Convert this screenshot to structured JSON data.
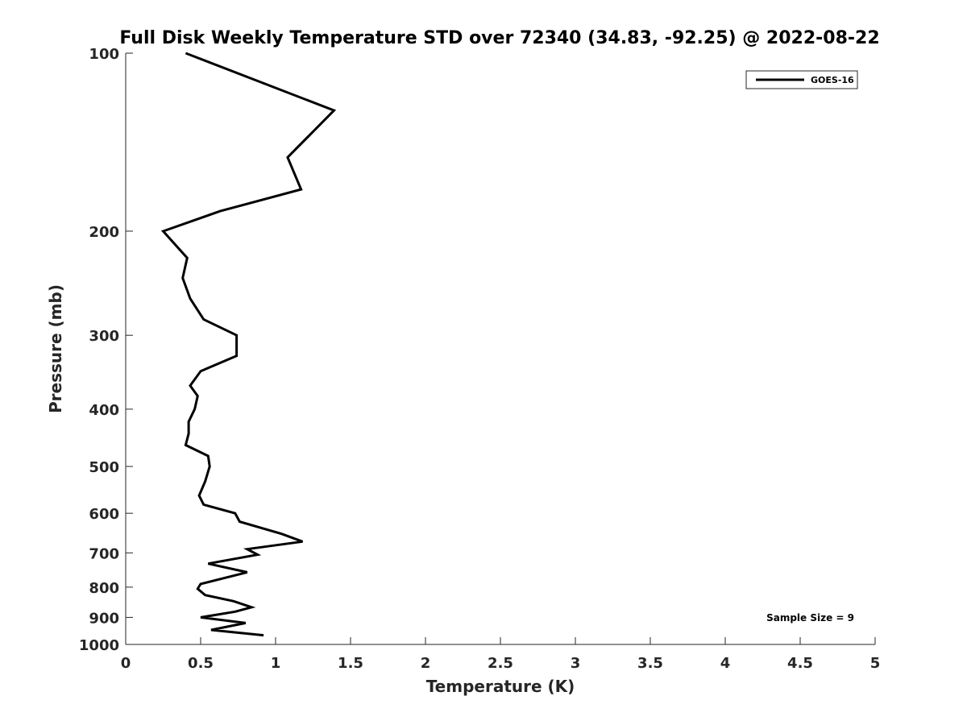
{
  "chart_data": {
    "type": "line",
    "title": "Full Disk Weekly Temperature STD over 72340 (34.83, -92.25) @ 2022-08-22",
    "xlabel": "Temperature (K)",
    "ylabel": "Pressure (mb)",
    "xlim": [
      0,
      5
    ],
    "ylim": [
      100,
      1000
    ],
    "y_scale": "log",
    "y_reversed": true,
    "grid": false,
    "x_ticks": [
      0,
      0.5,
      1,
      1.5,
      2,
      2.5,
      3,
      3.5,
      4,
      4.5,
      5
    ],
    "x_tick_labels": [
      "0",
      "0.5",
      "1",
      "1.5",
      "2",
      "2.5",
      "3",
      "3.5",
      "4",
      "4.5",
      "5"
    ],
    "y_ticks": [
      100,
      200,
      300,
      400,
      500,
      600,
      700,
      800,
      900,
      1000
    ],
    "y_tick_labels": [
      "100",
      "200",
      "300",
      "400",
      "500",
      "600",
      "700",
      "800",
      "900",
      "1000"
    ],
    "legend_position": "top-right",
    "annotation": "Sample Size = 9",
    "series": [
      {
        "name": "GOES-16",
        "color": "#000000",
        "points": [
          [
            0.4,
            100
          ],
          [
            1.39,
            125
          ],
          [
            1.08,
            150
          ],
          [
            1.17,
            170
          ],
          [
            0.63,
            185
          ],
          [
            0.25,
            200
          ],
          [
            0.41,
            222
          ],
          [
            0.38,
            240
          ],
          [
            0.43,
            260
          ],
          [
            0.52,
            282
          ],
          [
            0.74,
            300
          ],
          [
            0.74,
            325
          ],
          [
            0.5,
            345
          ],
          [
            0.43,
            365
          ],
          [
            0.48,
            380
          ],
          [
            0.46,
            400
          ],
          [
            0.42,
            420
          ],
          [
            0.42,
            440
          ],
          [
            0.4,
            460
          ],
          [
            0.55,
            480
          ],
          [
            0.56,
            500
          ],
          [
            0.53,
            530
          ],
          [
            0.49,
            560
          ],
          [
            0.52,
            580
          ],
          [
            0.73,
            600
          ],
          [
            0.76,
            620
          ],
          [
            1.04,
            650
          ],
          [
            1.18,
            670
          ],
          [
            0.81,
            690
          ],
          [
            0.88,
            705
          ],
          [
            0.55,
            730
          ],
          [
            0.81,
            755
          ],
          [
            0.5,
            790
          ],
          [
            0.48,
            805
          ],
          [
            0.53,
            825
          ],
          [
            0.72,
            845
          ],
          [
            0.84,
            865
          ],
          [
            0.73,
            880
          ],
          [
            0.5,
            900
          ],
          [
            0.8,
            920
          ],
          [
            0.57,
            945
          ],
          [
            0.92,
            965
          ]
        ]
      }
    ]
  }
}
